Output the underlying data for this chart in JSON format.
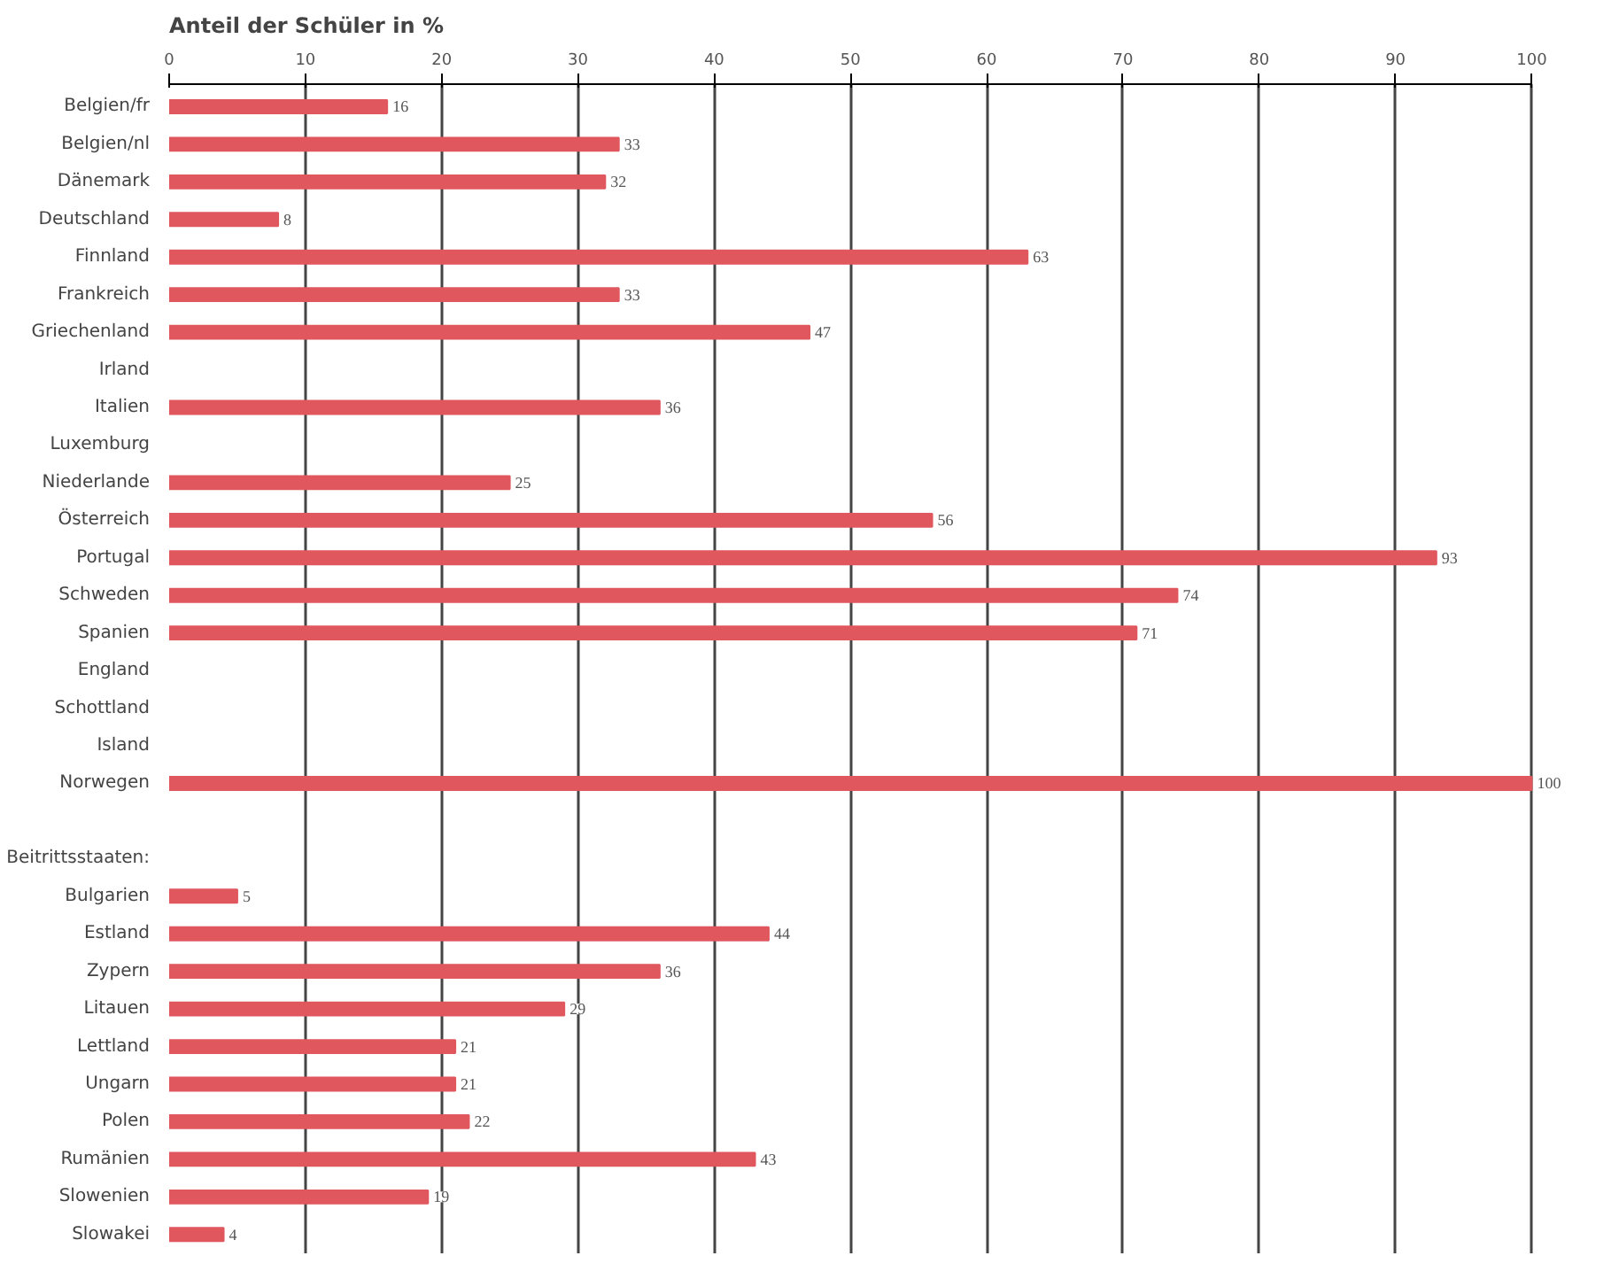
{
  "chart_data": {
    "type": "bar",
    "orientation": "horizontal",
    "title": "Anteil der Schüler in %",
    "categories": [
      "Belgien/fr",
      "Belgien/nl",
      "Dänemark",
      "Deutschland",
      "Finnland",
      "Frankreich",
      "Griechenland",
      "Irland",
      "Italien",
      "Luxemburg",
      "Niederlande",
      "Österreich",
      "Portugal",
      "Schweden",
      "Spanien",
      "England",
      "Schottland",
      "Island",
      "Norwegen",
      null,
      null,
      "Bulgarien",
      "Estland",
      "Zypern",
      "Litauen",
      "Lettland",
      "Ungarn",
      "Polen",
      "Rumänien",
      "Slowenien",
      "Slowakei"
    ],
    "values": [
      16,
      33,
      32,
      8,
      63,
      33,
      47,
      null,
      36,
      null,
      25,
      56,
      93,
      74,
      71,
      null,
      null,
      null,
      100,
      null,
      null,
      5,
      44,
      36,
      29,
      21,
      21,
      22,
      43,
      19,
      4
    ],
    "color": "#e0575e",
    "xlim": [
      0,
      100
    ],
    "xticks": [
      0,
      10,
      20,
      30,
      40,
      50,
      60,
      70,
      80,
      90,
      100
    ],
    "grid": "x",
    "data_labels": true,
    "annotations": [
      "Beitrittsstaaten:"
    ]
  }
}
